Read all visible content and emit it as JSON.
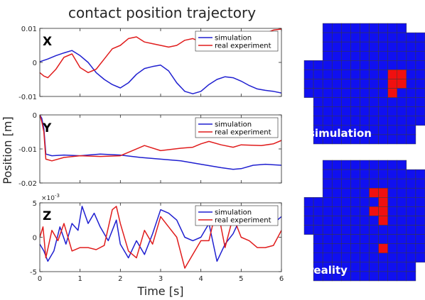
{
  "figure": {
    "title": "contact position trajectory",
    "ylabel": "Position [m]",
    "xlabel": "Time [s]"
  },
  "chart_data": [
    {
      "type": "line",
      "panel": "X",
      "xlim": [
        0,
        6
      ],
      "ylim": [
        -0.01,
        0.01
      ],
      "yticks": [
        -0.01,
        0,
        0.01
      ],
      "ytick_labels": [
        "-0.01",
        "0",
        "0.01"
      ],
      "xticks": [
        0,
        1,
        2,
        3,
        4,
        5,
        6
      ],
      "xtick_labels": [
        "",
        "",
        "",
        "",
        "",
        "",
        ""
      ],
      "legend": "top-right",
      "series": [
        {
          "name": "simulation",
          "color": "#1f1fd0",
          "x": [
            0,
            0.2,
            0.4,
            0.6,
            0.8,
            1.0,
            1.2,
            1.4,
            1.6,
            1.8,
            2.0,
            2.2,
            2.4,
            2.6,
            2.8,
            3.0,
            3.2,
            3.4,
            3.6,
            3.8,
            4.0,
            4.2,
            4.4,
            4.6,
            4.8,
            5.0,
            5.2,
            5.4,
            5.6,
            5.8,
            6.0
          ],
          "y": [
            0.0002,
            0.001,
            0.002,
            0.0028,
            0.0035,
            0.002,
            0.0,
            -0.003,
            -0.005,
            -0.0065,
            -0.0075,
            -0.006,
            -0.0035,
            -0.0018,
            -0.0012,
            -0.0008,
            -0.0025,
            -0.006,
            -0.0085,
            -0.0092,
            -0.0085,
            -0.0065,
            -0.005,
            -0.0042,
            -0.0045,
            -0.0055,
            -0.0068,
            -0.0078,
            -0.0082,
            -0.0085,
            -0.009
          ]
        },
        {
          "name": "real experiment",
          "color": "#e01c1c",
          "x": [
            0,
            0.1,
            0.2,
            0.4,
            0.6,
            0.8,
            1.0,
            1.2,
            1.4,
            1.6,
            1.8,
            2.0,
            2.2,
            2.4,
            2.6,
            2.8,
            3.0,
            3.2,
            3.4,
            3.6,
            3.8,
            4.0,
            4.2,
            4.4,
            4.6,
            4.8,
            5.0,
            5.2,
            5.4,
            5.6,
            5.8,
            6.0
          ],
          "y": [
            -0.003,
            -0.004,
            -0.0045,
            -0.002,
            0.0015,
            0.0025,
            -0.0015,
            -0.003,
            -0.002,
            0.001,
            0.004,
            0.005,
            0.007,
            0.0075,
            0.006,
            0.0055,
            0.005,
            0.0045,
            0.005,
            0.0065,
            0.007,
            0.006,
            0.0055,
            0.005,
            0.0062,
            0.007,
            0.0072,
            0.0078,
            0.008,
            0.0085,
            0.0095,
            0.0098
          ]
        }
      ]
    },
    {
      "type": "line",
      "panel": "Y",
      "xlim": [
        0,
        6
      ],
      "ylim": [
        -0.02,
        0
      ],
      "yticks": [
        -0.02,
        -0.01,
        0
      ],
      "ytick_labels": [
        "-0.02",
        "-0.01",
        "0"
      ],
      "xticks": [
        0,
        1,
        2,
        3,
        4,
        5,
        6
      ],
      "xtick_labels": [
        "",
        "",
        "",
        "",
        "",
        "",
        ""
      ],
      "legend": "top-right",
      "series": [
        {
          "name": "simulation",
          "color": "#1f1fd0",
          "x": [
            0,
            0.05,
            0.1,
            0.15,
            0.3,
            0.6,
            1.0,
            1.5,
            2.0,
            2.5,
            3.0,
            3.5,
            4.0,
            4.5,
            4.8,
            5.0,
            5.3,
            5.6,
            6.0
          ],
          "y": [
            0.0,
            -0.001,
            -0.004,
            -0.0115,
            -0.012,
            -0.0118,
            -0.012,
            -0.0115,
            -0.0118,
            -0.0125,
            -0.013,
            -0.0135,
            -0.0145,
            -0.0155,
            -0.016,
            -0.0158,
            -0.0148,
            -0.0145,
            -0.0148
          ]
        },
        {
          "name": "real experiment",
          "color": "#e01c1c",
          "x": [
            0,
            0.05,
            0.1,
            0.15,
            0.3,
            0.6,
            1.0,
            1.5,
            2.0,
            2.3,
            2.6,
            3.0,
            3.5,
            3.8,
            4.0,
            4.2,
            4.5,
            4.8,
            5.0,
            5.5,
            5.8,
            6.0
          ],
          "y": [
            0.0,
            -0.002,
            -0.005,
            -0.013,
            -0.0135,
            -0.0125,
            -0.012,
            -0.0122,
            -0.012,
            -0.0105,
            -0.009,
            -0.0105,
            -0.0098,
            -0.0095,
            -0.0085,
            -0.0078,
            -0.0088,
            -0.0095,
            -0.0088,
            -0.009,
            -0.0085,
            -0.0075
          ]
        }
      ]
    },
    {
      "type": "line",
      "panel": "Z",
      "xlim": [
        0,
        6
      ],
      "ylim": [
        -0.005,
        0.005
      ],
      "yticks": [
        -0.005,
        0,
        0.005
      ],
      "ytick_labels": [
        "-5",
        "0",
        "5"
      ],
      "exponent": "10",
      "exponent_power": "-3",
      "xticks": [
        0,
        1,
        2,
        3,
        4,
        5,
        6
      ],
      "xtick_labels": [
        "0",
        "1",
        "2",
        "3",
        "4",
        "5",
        "6"
      ],
      "legend": "top-right",
      "series": [
        {
          "name": "simulation",
          "color": "#1f1fd0",
          "x": [
            0,
            0.1,
            0.2,
            0.35,
            0.5,
            0.65,
            0.8,
            0.95,
            1.05,
            1.2,
            1.35,
            1.5,
            1.7,
            1.9,
            2.0,
            2.2,
            2.4,
            2.6,
            2.8,
            3.0,
            3.2,
            3.4,
            3.6,
            3.8,
            4.0,
            4.2,
            4.4,
            4.6,
            4.8,
            5.0,
            5.2,
            5.4,
            5.6,
            5.8,
            6.0
          ],
          "y": [
            -0.001,
            -0.002,
            -0.0035,
            -0.002,
            0.0015,
            -0.001,
            0.002,
            0.001,
            0.0045,
            0.002,
            0.0035,
            0.0015,
            -0.0005,
            0.0025,
            -0.001,
            -0.003,
            -0.0005,
            -0.0025,
            0.0005,
            0.004,
            0.0035,
            0.0025,
            0.0,
            -0.0005,
            0.0,
            0.002,
            -0.0035,
            -0.001,
            0.0005,
            0.003,
            0.002,
            0.0025,
            0.0035,
            0.002,
            0.003
          ]
        },
        {
          "name": "real experiment",
          "color": "#e01c1c",
          "x": [
            0,
            0.08,
            0.15,
            0.3,
            0.45,
            0.6,
            0.8,
            1.0,
            1.2,
            1.4,
            1.6,
            1.8,
            1.9,
            2.0,
            2.2,
            2.4,
            2.6,
            2.8,
            3.0,
            3.2,
            3.4,
            3.6,
            3.8,
            4.0,
            4.2,
            4.4,
            4.6,
            4.8,
            5.0,
            5.2,
            5.4,
            5.6,
            5.8,
            6.0
          ],
          "y": [
            0.0,
            0.0015,
            -0.003,
            0.001,
            -0.0005,
            0.002,
            -0.002,
            -0.0015,
            -0.0015,
            -0.0018,
            -0.0012,
            0.004,
            0.0045,
            0.002,
            -0.002,
            -0.003,
            0.001,
            -0.001,
            0.003,
            0.0015,
            0.0,
            -0.0045,
            -0.0025,
            -0.0005,
            -0.0005,
            0.0045,
            -0.0015,
            0.003,
            0.0,
            -0.0005,
            -0.0015,
            -0.0015,
            -0.0012,
            0.001
          ]
        }
      ]
    },
    {
      "type": "heatmap",
      "panel": "simulation",
      "label": "simulation",
      "rows": 13,
      "cols": 13,
      "colors": {
        "blank": "#ffffff",
        "no_contact": "#1010f0",
        "contact": "#f01010"
      },
      "grid": [
        [
          0,
          0,
          1,
          1,
          1,
          1,
          1,
          1,
          1,
          1,
          1,
          0,
          0
        ],
        [
          0,
          0,
          1,
          1,
          1,
          1,
          1,
          1,
          1,
          1,
          1,
          1,
          1
        ],
        [
          0,
          0,
          1,
          1,
          1,
          1,
          1,
          1,
          1,
          1,
          1,
          1,
          1
        ],
        [
          0,
          0,
          1,
          1,
          1,
          1,
          1,
          1,
          1,
          1,
          1,
          1,
          1
        ],
        [
          1,
          1,
          1,
          1,
          1,
          1,
          1,
          1,
          1,
          1,
          1,
          1,
          1
        ],
        [
          1,
          1,
          1,
          1,
          1,
          1,
          1,
          1,
          1,
          2,
          2,
          1,
          1
        ],
        [
          1,
          1,
          1,
          1,
          1,
          1,
          1,
          1,
          1,
          2,
          2,
          1,
          1
        ],
        [
          1,
          1,
          1,
          1,
          1,
          1,
          1,
          1,
          1,
          2,
          1,
          1,
          1
        ],
        [
          0,
          1,
          1,
          1,
          1,
          1,
          1,
          1,
          1,
          1,
          1,
          1,
          1
        ],
        [
          0,
          1,
          1,
          1,
          1,
          1,
          1,
          1,
          1,
          1,
          1,
          1,
          1
        ],
        [
          0,
          1,
          1,
          1,
          1,
          1,
          1,
          1,
          1,
          1,
          1,
          1,
          1
        ],
        [
          0,
          1,
          1,
          1,
          1,
          1,
          1,
          1,
          1,
          1,
          1,
          1,
          0
        ],
        [
          0,
          1,
          1,
          1,
          1,
          1,
          1,
          1,
          1,
          1,
          1,
          1,
          0
        ]
      ]
    },
    {
      "type": "heatmap",
      "panel": "reality",
      "label": "reality",
      "rows": 13,
      "cols": 13,
      "colors": {
        "blank": "#ffffff",
        "no_contact": "#1010f0",
        "contact": "#f01010"
      },
      "grid": [
        [
          0,
          0,
          1,
          1,
          1,
          1,
          1,
          1,
          1,
          1,
          1,
          0,
          0
        ],
        [
          0,
          0,
          1,
          1,
          1,
          1,
          1,
          1,
          1,
          1,
          1,
          1,
          1
        ],
        [
          0,
          0,
          1,
          1,
          1,
          1,
          1,
          1,
          1,
          1,
          1,
          1,
          1
        ],
        [
          0,
          0,
          1,
          1,
          1,
          1,
          1,
          2,
          2,
          1,
          1,
          1,
          1
        ],
        [
          1,
          1,
          1,
          1,
          1,
          1,
          1,
          1,
          2,
          1,
          1,
          1,
          1
        ],
        [
          1,
          1,
          1,
          1,
          1,
          1,
          1,
          2,
          2,
          1,
          1,
          1,
          1
        ],
        [
          1,
          1,
          1,
          1,
          1,
          1,
          1,
          1,
          2,
          1,
          1,
          1,
          1
        ],
        [
          1,
          1,
          1,
          1,
          1,
          1,
          1,
          1,
          1,
          1,
          1,
          1,
          1
        ],
        [
          0,
          1,
          1,
          1,
          1,
          1,
          1,
          1,
          1,
          1,
          1,
          1,
          1
        ],
        [
          0,
          1,
          1,
          1,
          1,
          1,
          1,
          1,
          2,
          1,
          1,
          1,
          1
        ],
        [
          0,
          1,
          1,
          1,
          1,
          1,
          1,
          1,
          1,
          1,
          1,
          1,
          1
        ],
        [
          0,
          1,
          1,
          1,
          1,
          1,
          1,
          1,
          1,
          1,
          1,
          1,
          0
        ],
        [
          0,
          1,
          1,
          1,
          1,
          1,
          1,
          1,
          1,
          1,
          1,
          1,
          0
        ]
      ]
    }
  ]
}
